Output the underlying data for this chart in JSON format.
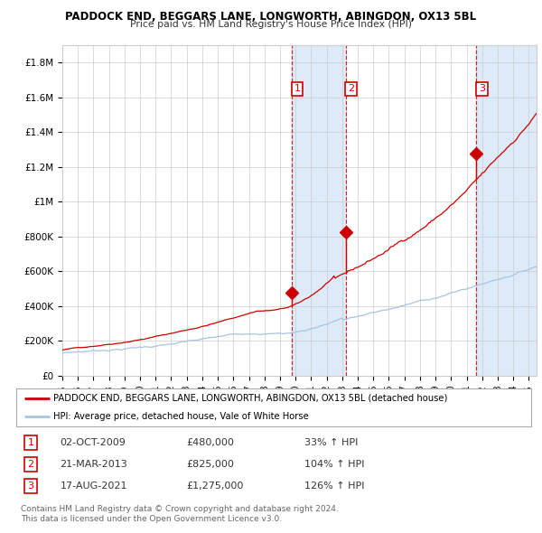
{
  "title": "PADDOCK END, BEGGARS LANE, LONGWORTH, ABINGDON, OX13 5BL",
  "subtitle": "Price paid vs. HM Land Registry's House Price Index (HPI)",
  "ylim": [
    0,
    1900000
  ],
  "yticks": [
    0,
    200000,
    400000,
    600000,
    800000,
    1000000,
    1200000,
    1400000,
    1600000,
    1800000
  ],
  "ytick_labels": [
    "£0",
    "£200K",
    "£400K",
    "£600K",
    "£800K",
    "£1M",
    "£1.2M",
    "£1.4M",
    "£1.6M",
    "£1.8M"
  ],
  "xlim_start": 1995.0,
  "xlim_end": 2025.5,
  "sale_dates": [
    2009.75,
    2013.22,
    2021.63
  ],
  "sale_prices": [
    480000,
    825000,
    1275000
  ],
  "sale_labels": [
    "1",
    "2",
    "3"
  ],
  "hpi_color": "#a8c4e0",
  "price_color": "#cc0000",
  "legend_price_label": "PADDOCK END, BEGGARS LANE, LONGWORTH, ABINGDON, OX13 5BL (detached house)",
  "legend_hpi_label": "HPI: Average price, detached house, Vale of White Horse",
  "footnote": "Contains HM Land Registry data © Crown copyright and database right 2024.\nThis data is licensed under the Open Government Licence v3.0.",
  "background_color": "#ffffff",
  "grid_color": "#cccccc",
  "shade_color": "#ddeaf7",
  "table_rows": [
    [
      "1",
      "02-OCT-2009",
      "£480,000",
      "33% ↑ HPI"
    ],
    [
      "2",
      "21-MAR-2013",
      "£825,000",
      "104% ↑ HPI"
    ],
    [
      "3",
      "17-AUG-2021",
      "£1,275,000",
      "126% ↑ HPI"
    ]
  ]
}
